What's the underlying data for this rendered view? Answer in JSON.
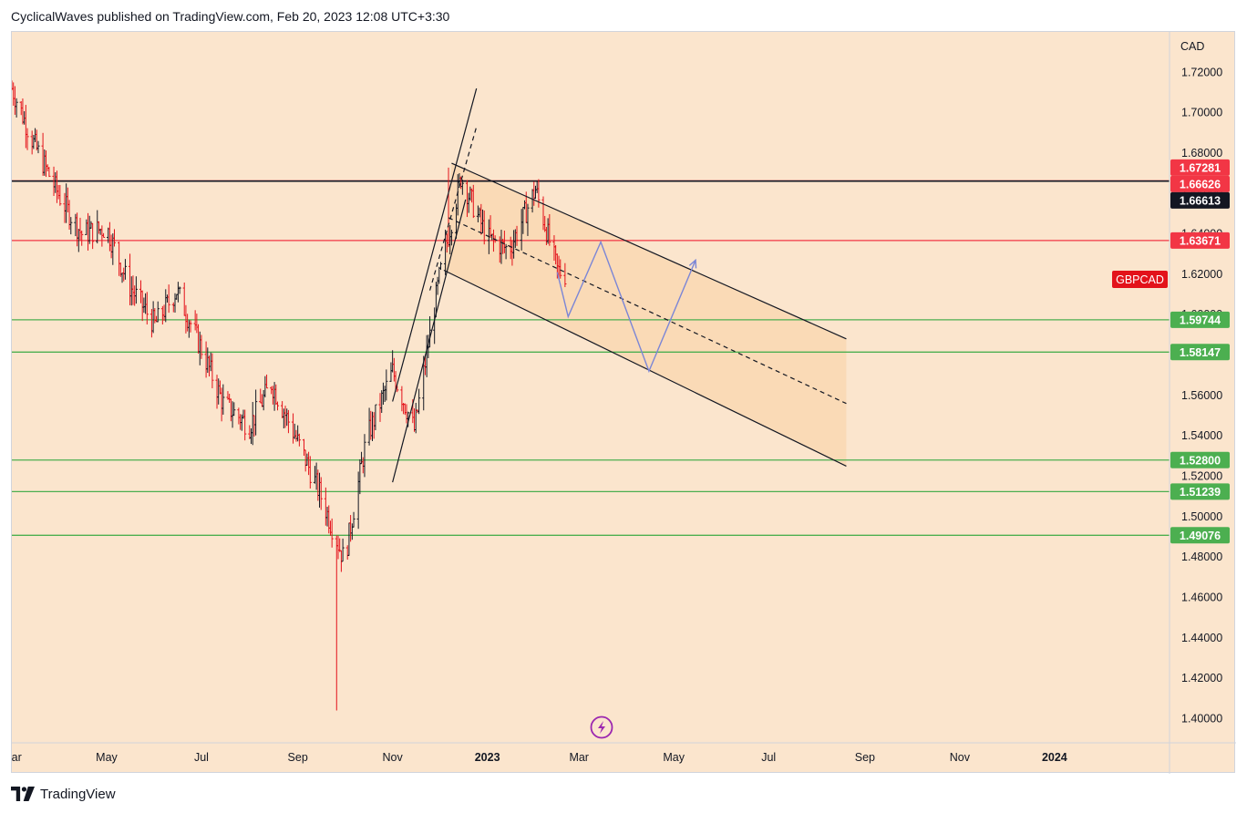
{
  "header": {
    "published_text": "CyclicalWaves published on TradingView.com, Feb 20, 2023 12:08 UTC+3:30"
  },
  "footer": {
    "brand": "TradingView"
  },
  "colors": {
    "background": "#fbe5cd",
    "channel_fill": "#f9d6ad",
    "up_candle": "#131722",
    "down_candle": "#e3121a",
    "resistance_line": "#f23645",
    "support_line": "#4caf50",
    "black_level": "#131722",
    "projection": "#7b86d6",
    "symbol_badge": "#e3121a",
    "icon_purple": "#9c27b0"
  },
  "chart_data": {
    "type": "candlestick",
    "symbol": "GBPCAD",
    "currency": "CAD",
    "x_axis": {
      "ticks": [
        "Mar",
        "May",
        "Jul",
        "Sep",
        "Nov",
        "2023",
        "Mar",
        "May",
        "Jul",
        "Sep",
        "Nov",
        "2024"
      ],
      "range": [
        "2022-03-01",
        "2024-03-15"
      ]
    },
    "y_axis": {
      "ticks": [
        1.4,
        1.42,
        1.44,
        1.46,
        1.48,
        1.5,
        1.52,
        1.54,
        1.56,
        1.58,
        1.6,
        1.62,
        1.64,
        1.66,
        1.68,
        1.7,
        1.72
      ],
      "tick_labels": [
        "1.40000",
        "1.42000",
        "1.44000",
        "1.46000",
        "1.48000",
        "1.50000",
        "1.52000",
        "1.54000",
        "1.56000",
        "1.58000",
        "1.60000",
        "1.62000",
        "1.64000",
        "1.66000",
        "1.68000",
        "1.70000",
        "1.72000"
      ],
      "range": [
        1.388,
        1.74
      ]
    },
    "price_path": [
      {
        "date": "2022-03-01",
        "price": 1.712
      },
      {
        "date": "2022-03-15",
        "price": 1.685
      },
      {
        "date": "2022-04-01",
        "price": 1.658
      },
      {
        "date": "2022-04-15",
        "price": 1.64
      },
      {
        "date": "2022-05-01",
        "price": 1.643
      },
      {
        "date": "2022-05-15",
        "price": 1.615
      },
      {
        "date": "2022-06-01",
        "price": 1.595
      },
      {
        "date": "2022-06-15",
        "price": 1.612
      },
      {
        "date": "2022-07-01",
        "price": 1.583
      },
      {
        "date": "2022-07-15",
        "price": 1.556
      },
      {
        "date": "2022-08-01",
        "price": 1.545
      },
      {
        "date": "2022-08-15",
        "price": 1.566
      },
      {
        "date": "2022-09-01",
        "price": 1.537
      },
      {
        "date": "2022-09-15",
        "price": 1.512
      },
      {
        "date": "2022-10-01",
        "price": 1.478
      },
      {
        "date": "2022-10-15",
        "price": 1.538
      },
      {
        "date": "2022-11-01",
        "price": 1.572
      },
      {
        "date": "2022-11-15",
        "price": 1.543
      },
      {
        "date": "2022-12-01",
        "price": 1.618
      },
      {
        "date": "2022-12-15",
        "price": 1.668
      },
      {
        "date": "2023-01-01",
        "price": 1.638
      },
      {
        "date": "2023-01-15",
        "price": 1.632
      },
      {
        "date": "2023-02-01",
        "price": 1.662
      },
      {
        "date": "2023-02-15",
        "price": 1.622
      },
      {
        "date": "2023-02-20",
        "price": 1.62
      }
    ],
    "extremes": [
      {
        "label": "2022 low",
        "date": "2022-09-26",
        "price": 1.404
      },
      {
        "label": "2022 high",
        "date": "2022-12-07",
        "price": 1.6728
      }
    ],
    "horizontal_levels": [
      {
        "value": "1.67281",
        "kind": "resistance",
        "line": false
      },
      {
        "value": "1.66626",
        "kind": "resistance",
        "line": true
      },
      {
        "value": "1.66613",
        "kind": "black",
        "line": true
      },
      {
        "value": "1.63671",
        "kind": "resistance",
        "line": true
      },
      {
        "value": "1.59744",
        "kind": "support",
        "line": true
      },
      {
        "value": "1.58147",
        "kind": "support",
        "line": true
      },
      {
        "value": "1.52800",
        "kind": "support",
        "line": true
      },
      {
        "value": "1.51239",
        "kind": "support",
        "line": true
      },
      {
        "value": "1.49076",
        "kind": "support",
        "line": true
      }
    ],
    "channels": [
      {
        "name": "rising",
        "upper": [
          {
            "date": "2022-11-01",
            "price": 1.557
          },
          {
            "date": "2022-12-25",
            "price": 1.712
          }
        ],
        "lower": [
          {
            "date": "2022-11-01",
            "price": 1.517
          },
          {
            "date": "2022-12-18",
            "price": 1.657
          }
        ],
        "mid_dashed": [
          {
            "date": "2022-11-25",
            "price": 1.612
          },
          {
            "date": "2022-12-25",
            "price": 1.693
          }
        ]
      },
      {
        "name": "descending",
        "upper": [
          {
            "date": "2022-12-09",
            "price": 1.675
          },
          {
            "date": "2023-08-20",
            "price": 1.588
          }
        ],
        "lower": [
          {
            "date": "2022-12-04",
            "price": 1.622
          },
          {
            "date": "2023-08-20",
            "price": 1.525
          }
        ],
        "mid_dashed": [
          {
            "date": "2022-12-07",
            "price": 1.648
          },
          {
            "date": "2023-08-20",
            "price": 1.556
          }
        ],
        "shaded_zone": true
      }
    ],
    "projection": [
      {
        "date": "2023-02-15",
        "price": 1.621
      },
      {
        "date": "2023-02-22",
        "price": 1.599
      },
      {
        "date": "2023-03-15",
        "price": 1.636
      },
      {
        "date": "2023-04-15",
        "price": 1.572
      },
      {
        "date": "2023-05-15",
        "price": 1.627
      }
    ]
  }
}
